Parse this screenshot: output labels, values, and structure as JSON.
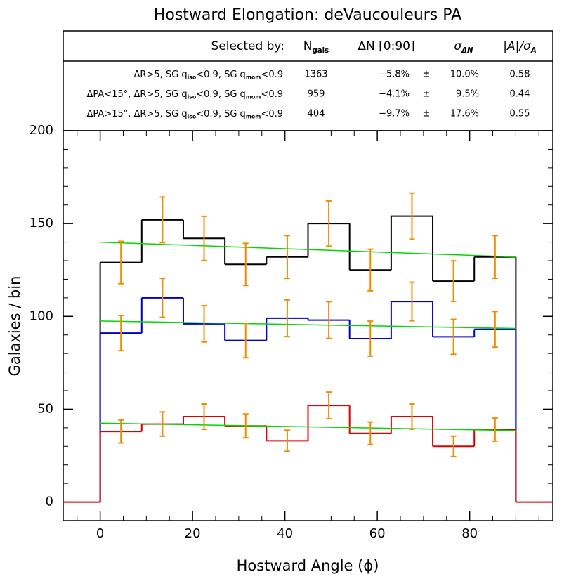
{
  "chart_data": {
    "type": "step-histogram",
    "title": "Hostward Elongation: deVaucouleurs PA",
    "xlabel": "Hostward Angle (ϕ)",
    "ylabel": "Galaxies / bin",
    "xlim": [
      -8,
      98
    ],
    "ylim": [
      -10,
      200
    ],
    "xticks": [
      0,
      20,
      40,
      60,
      80
    ],
    "yticks": [
      0,
      50,
      100,
      150,
      200
    ],
    "xminor": [
      -5,
      5,
      10,
      15,
      25,
      30,
      35,
      45,
      50,
      55,
      65,
      70,
      75,
      85,
      90,
      95
    ],
    "yminor": [
      -10,
      10,
      20,
      30,
      40,
      60,
      70,
      80,
      90,
      110,
      120,
      130,
      140,
      160,
      170,
      180,
      190
    ],
    "bins": [
      0,
      9,
      18,
      27,
      36,
      45,
      54,
      63,
      72,
      81,
      90
    ],
    "errorbar_color": "#f08c00",
    "fit_color": "#00d800",
    "series": [
      {
        "color": "#000000",
        "values": [
          129,
          152,
          142,
          128,
          132,
          150,
          125,
          154,
          119,
          132
        ],
        "errors": [
          11.4,
          12.3,
          11.9,
          11.3,
          11.5,
          12.2,
          11.2,
          12.4,
          10.9,
          11.5
        ],
        "fit": [
          140,
          132
        ]
      },
      {
        "color": "#0000cc",
        "values": [
          91,
          110,
          96,
          87,
          99,
          98,
          88,
          108,
          89,
          93
        ],
        "errors": [
          9.5,
          10.5,
          9.8,
          9.3,
          9.9,
          9.9,
          9.4,
          10.4,
          9.4,
          9.6
        ],
        "fit": [
          97.5,
          93.5
        ]
      },
      {
        "color": "#dd0000",
        "values": [
          38,
          42,
          46,
          41,
          33,
          52,
          37,
          46,
          30,
          39
        ],
        "errors": [
          6.2,
          6.5,
          6.8,
          6.4,
          5.7,
          7.2,
          6.1,
          6.8,
          5.5,
          6.2
        ],
        "fit": [
          42.5,
          38.5
        ]
      }
    ],
    "table": {
      "header": [
        [
          "Selected by:"
        ],
        [
          "N",
          "gals"
        ],
        [
          "ΔN [0:90]"
        ],
        [
          "σ",
          "ΔN"
        ],
        [
          "|A|/σ",
          "A"
        ]
      ],
      "rows": [
        {
          "label": [
            "ΔR>5, SG q",
            "iso",
            "<0.9, SG q",
            "mom",
            "<0.9"
          ],
          "cells": [
            "1363",
            "−5.8%",
            "±",
            "10.0%",
            "0.58"
          ]
        },
        {
          "label": [
            "ΔPA<15°, ΔR>5, SG q",
            "iso",
            "<0.9, SG q",
            "mom",
            "<0.9"
          ],
          "cells": [
            "959",
            "−4.1%",
            "±",
            "9.5%",
            "0.44"
          ]
        },
        {
          "label": [
            "ΔPA>15°, ΔR>5, SG q",
            "iso",
            "<0.9, SG q",
            "mom",
            "<0.9"
          ],
          "cells": [
            "404",
            "−9.7%",
            "±",
            "17.6%",
            "0.55"
          ]
        }
      ]
    }
  }
}
